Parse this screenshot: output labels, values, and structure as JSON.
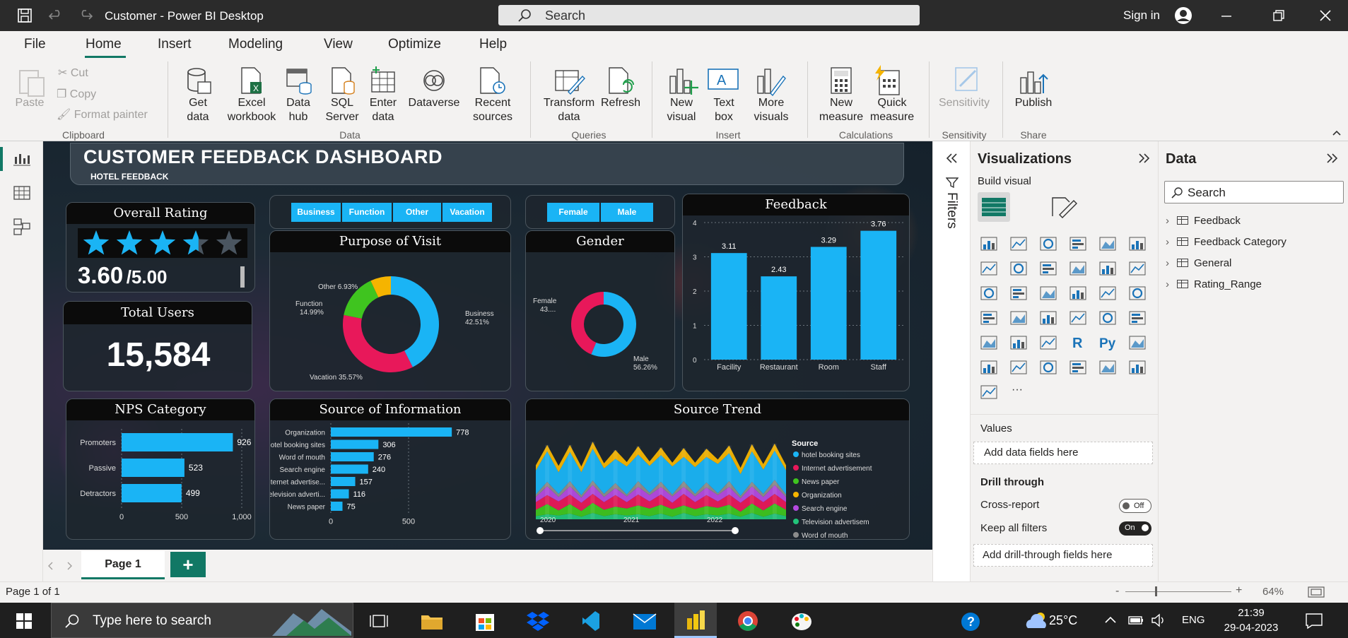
{
  "window": {
    "title": "Customer - Power BI Desktop",
    "search_placeholder": "Search",
    "sign_in": "Sign in"
  },
  "menu": [
    "File",
    "Home",
    "Insert",
    "Modeling",
    "View",
    "Optimize",
    "Help"
  ],
  "ribbon": {
    "clipboard": {
      "paste": "Paste",
      "cut": "Cut",
      "copy": "Copy",
      "format_painter": "Format painter",
      "group": "Clipboard"
    },
    "data": {
      "get_data": "Get data",
      "excel": "Excel workbook",
      "data_hub": "Data hub",
      "sql": "SQL Server",
      "enter": "Enter data",
      "dataverse": "Dataverse",
      "recent": "Recent sources",
      "group": "Data"
    },
    "queries": {
      "transform": "Transform data",
      "refresh": "Refresh",
      "group": "Queries"
    },
    "insert": {
      "new_visual": "New visual",
      "text_box": "Text box",
      "more_visuals": "More visuals",
      "group": "Insert"
    },
    "calculations": {
      "new_measure": "New measure",
      "quick_measure": "Quick measure",
      "group": "Calculations"
    },
    "sensitivity": {
      "label": "Sensitivity",
      "group": "Sensitivity"
    },
    "share": {
      "publish": "Publish",
      "group": "Share"
    }
  },
  "dashboard": {
    "title": "CUSTOMER FEEDBACK DASHBOARD",
    "subtitle": "HOTEL FEEDBACK",
    "overall_rating": {
      "title": "Overall Rating",
      "value": "3.60",
      "max": "/5.00",
      "stars": 3.6
    },
    "total_users": {
      "title": "Total Users",
      "value": "15,584"
    },
    "purpose_slicer": [
      "Business",
      "Function",
      "Other",
      "Vacation"
    ],
    "gender_slicer": [
      "Female",
      "Male"
    ]
  },
  "chart_data": [
    {
      "type": "pie",
      "title": "Purpose of Visit",
      "categories": [
        "Business",
        "Vacation",
        "Function",
        "Other"
      ],
      "values": [
        42.51,
        35.57,
        14.99,
        6.93
      ],
      "labels": [
        "Business 42.51%",
        "Vacation 35.57%",
        "Function 14.99%",
        "Other 6.93%"
      ],
      "colors": [
        "#1ab4f5",
        "#e8185a",
        "#3fc41f",
        "#f5b400"
      ]
    },
    {
      "type": "pie",
      "title": "Gender",
      "categories": [
        "Male",
        "Female"
      ],
      "values": [
        56.26,
        43.74
      ],
      "labels": [
        "Male 56.26%",
        "Female 43...."
      ],
      "colors": [
        "#1ab4f5",
        "#e8185a"
      ]
    },
    {
      "type": "bar",
      "title": "Feedback",
      "categories": [
        "Facility",
        "Restaurant",
        "Room",
        "Staff"
      ],
      "values": [
        3.11,
        2.43,
        3.29,
        3.76
      ],
      "value_labels": [
        "3.11",
        "2.43",
        "3.29",
        "3.76"
      ],
      "ylim": [
        0,
        4
      ],
      "yticks": [
        "0",
        "1",
        "2",
        "3",
        "4"
      ],
      "color": "#1ab4f5"
    },
    {
      "type": "bar",
      "orientation": "horizontal",
      "title": "NPS Category",
      "categories": [
        "Promoters",
        "Passive",
        "Detractors"
      ],
      "values": [
        926,
        523,
        499
      ],
      "value_labels": [
        "926",
        "523",
        "499"
      ],
      "xlim": [
        0,
        1000
      ],
      "xticks": [
        "0",
        "500",
        "1,000"
      ],
      "color": "#1ab4f5"
    },
    {
      "type": "bar",
      "orientation": "horizontal",
      "title": "Source of Information",
      "categories": [
        "Organization",
        "hotel booking sites",
        "Word of mouth",
        "Search engine",
        "Internet advertise...",
        "Television adverti...",
        "News paper"
      ],
      "values": [
        778,
        306,
        276,
        240,
        157,
        116,
        75
      ],
      "value_labels": [
        "778",
        "306",
        "276",
        "240",
        "157",
        "116",
        "75"
      ],
      "xlim": [
        0,
        900
      ],
      "xticks": [
        "0",
        "500"
      ],
      "color": "#1ab4f5"
    },
    {
      "type": "area",
      "title": "Source Trend",
      "xticks": [
        "2020",
        "2021",
        "2022"
      ],
      "legend_title": "Source",
      "legend_position": "right",
      "series": [
        {
          "name": "hotel booking sites",
          "color": "#1ab4f5"
        },
        {
          "name": "Internet advertisement",
          "color": "#e8185a"
        },
        {
          "name": "News paper",
          "color": "#3fc41f"
        },
        {
          "name": "Organization",
          "color": "#f5b400"
        },
        {
          "name": "Search engine",
          "color": "#b44ae0"
        },
        {
          "name": "Television advertisem",
          "color": "#22c47a"
        },
        {
          "name": "Word of mouth",
          "color": "#8c8c8c"
        }
      ]
    }
  ],
  "panes": {
    "filters": "Filters",
    "visualizations": {
      "title": "Visualizations",
      "build": "Build visual",
      "values": "Values",
      "add_fields": "Add data fields here",
      "drill": "Drill through",
      "cross": "Cross-report",
      "cross_state": "Off",
      "keep": "Keep all filters",
      "keep_state": "On",
      "drill_fields": "Add drill-through fields here"
    },
    "data": {
      "title": "Data",
      "search": "Search",
      "tables": [
        "Feedback",
        "Feedback Category",
        "General",
        "Rating_Range"
      ]
    }
  },
  "pages": {
    "tab": "Page 1",
    "status": "Page 1 of 1",
    "zoom": "64%"
  },
  "taskbar": {
    "search": "Type here to search",
    "temp": "25°C",
    "lang": "ENG",
    "time": "21:39",
    "date": "29-04-2023"
  }
}
